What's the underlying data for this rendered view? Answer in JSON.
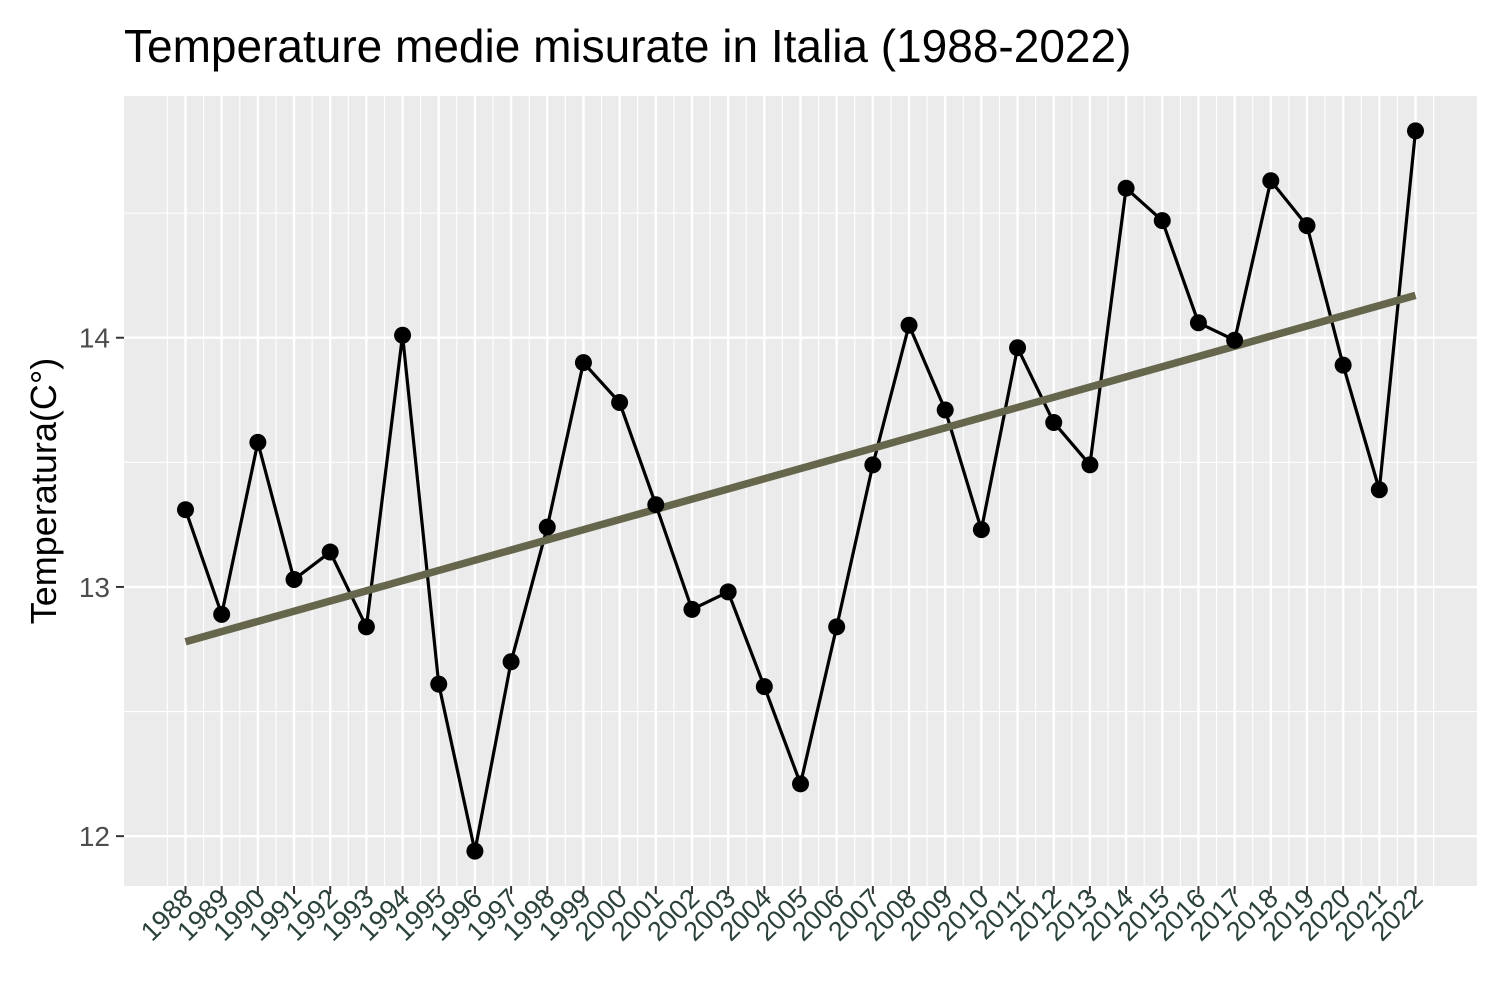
{
  "chart_data": {
    "type": "line",
    "title": "Temperature medie misurate in Italia (1988-2022)",
    "xlabel": "",
    "ylabel": "Temperatura(C°)",
    "x": [
      1988,
      1989,
      1990,
      1991,
      1992,
      1993,
      1994,
      1995,
      1996,
      1997,
      1998,
      1999,
      2000,
      2001,
      2002,
      2003,
      2004,
      2005,
      2006,
      2007,
      2008,
      2009,
      2010,
      2011,
      2012,
      2013,
      2014,
      2015,
      2016,
      2017,
      2018,
      2019,
      2020,
      2021,
      2022
    ],
    "x_tick_labels": [
      "1988",
      "1989",
      "1990",
      "1991",
      "1992",
      "1993",
      "1994",
      "1995",
      "1996",
      "1997",
      "1998",
      "1999",
      "2000",
      "2001",
      "2002",
      "2003",
      "2004",
      "2005",
      "2006",
      "2007",
      "2008",
      "2009",
      "2010",
      "2011",
      "2012",
      "2013",
      "2014",
      "2015",
      "2016",
      "2017",
      "2018",
      "2019",
      "2020",
      "2021",
      "2022"
    ],
    "series": [
      {
        "values": [
          13.31,
          12.89,
          13.58,
          13.03,
          13.14,
          12.84,
          14.01,
          12.61,
          11.94,
          12.7,
          13.24,
          13.9,
          13.74,
          13.33,
          12.91,
          12.98,
          12.6,
          12.21,
          12.84,
          13.49,
          14.05,
          13.71,
          13.23,
          13.96,
          13.66,
          13.49,
          14.6,
          14.47,
          14.06,
          13.99,
          14.63,
          14.45,
          13.89,
          13.39,
          14.83
        ],
        "color": "#000000"
      }
    ],
    "trend": {
      "type": "linear",
      "start": {
        "x": 1988,
        "y": 12.78
      },
      "end": {
        "x": 2022,
        "y": 14.17
      },
      "color": "#66664d"
    },
    "y_ticks": [
      12,
      13,
      14
    ],
    "ylim": [
      11.8,
      14.97
    ],
    "xlim": [
      1986.3,
      2023.7
    ],
    "grid": true,
    "legend": "none",
    "panel_background": "#ebebeb",
    "grid_color": "#ffffff",
    "y_tick_color": "#4d4d4d",
    "x_tick_color": "#2b4238"
  }
}
